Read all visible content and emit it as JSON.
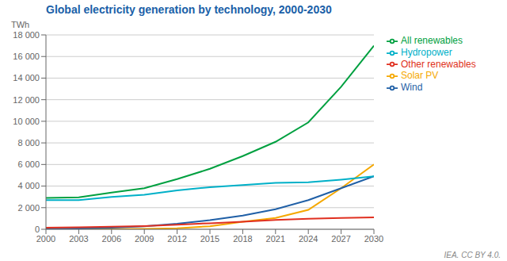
{
  "chart_data": {
    "type": "line",
    "title": "Global electricity generation by technology, 2000-2030",
    "y_label": "TWh",
    "annotations": [
      "IEA. CC BY 4.0."
    ],
    "x": [
      2000,
      2003,
      2006,
      2009,
      2012,
      2015,
      2018,
      2021,
      2024,
      2027,
      2030
    ],
    "series": [
      {
        "name": "Solar PV",
        "color": "#f5a800",
        "values": [
          5,
          10,
          20,
          30,
          100,
          280,
          700,
          1050,
          1800,
          3800,
          6000
        ]
      },
      {
        "name": "Wind",
        "color": "#1f5fa6",
        "values": [
          30,
          70,
          150,
          280,
          520,
          840,
          1270,
          1850,
          2700,
          3800,
          4900
        ]
      },
      {
        "name": "Hydropower",
        "color": "#00b0c8",
        "values": [
          2700,
          2700,
          3000,
          3200,
          3600,
          3900,
          4100,
          4300,
          4350,
          4600,
          4900
        ]
      },
      {
        "name": "Other renewables",
        "color": "#e03020",
        "values": [
          150,
          180,
          230,
          300,
          430,
          560,
          700,
          870,
          980,
          1050,
          1100
        ]
      },
      {
        "name": "All renewables",
        "color": "#00a040",
        "values": [
          2900,
          2950,
          3400,
          3800,
          4650,
          5600,
          6780,
          8100,
          9900,
          13200,
          17000
        ]
      }
    ],
    "xlim": [
      2000,
      2030
    ],
    "ylim": [
      0,
      18000
    ],
    "xticks": [
      2000,
      2003,
      2006,
      2009,
      2012,
      2015,
      2018,
      2021,
      2024,
      2027,
      2030
    ],
    "yticks": [
      0,
      {
        "value": 2000,
        "label": "2 000"
      },
      {
        "value": 4000,
        "label": "4 000"
      },
      {
        "value": 6000,
        "label": "6 000"
      },
      {
        "value": 8000,
        "label": "8 000"
      },
      {
        "value": 10000,
        "label": "10 000"
      },
      {
        "value": 12000,
        "label": "12 000"
      },
      {
        "value": 14000,
        "label": "14 000"
      },
      {
        "value": 16000,
        "label": "16 000"
      },
      {
        "value": 18000,
        "label": "18 000"
      }
    ],
    "grid": true,
    "legend": "right",
    "title_color": "#1a5fa8"
  }
}
